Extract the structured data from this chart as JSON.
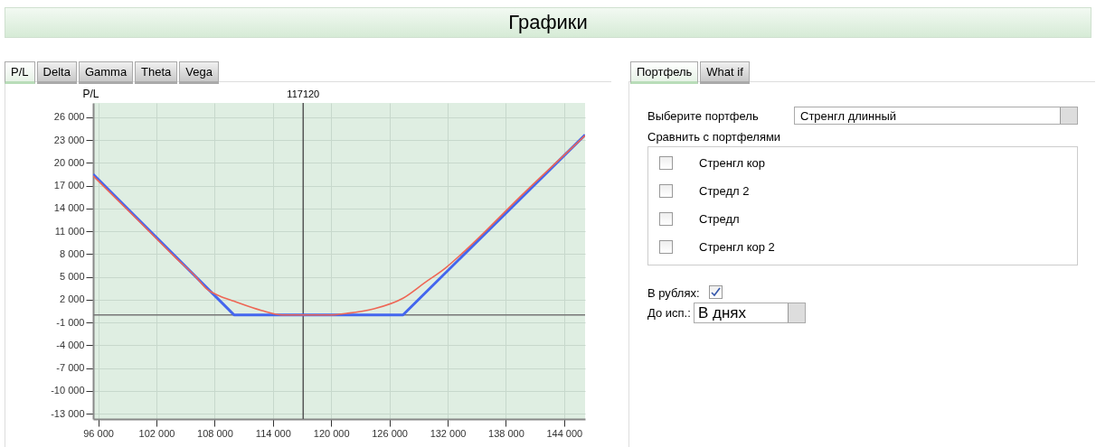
{
  "chart_data": [
    {
      "type": "line",
      "title": "Графики",
      "ylabel": "P/L",
      "annotations": [
        "P/L",
        "Delta",
        "Gamma",
        "Theta",
        "Vega"
      ],
      "xlim": [
        95480,
        146160
      ],
      "ylim": [
        -13700,
        27900
      ],
      "xticks": [
        {
          "value": 96000,
          "label": "96 000"
        },
        {
          "value": 102000,
          "label": "102 000"
        },
        {
          "value": 108000,
          "label": "108 000"
        },
        {
          "value": 114000,
          "label": "114 000"
        },
        {
          "value": 120000,
          "label": "120 000"
        },
        {
          "value": 126000,
          "label": "126 000"
        },
        {
          "value": 132000,
          "label": "132 000"
        },
        {
          "value": 138000,
          "label": "138 000"
        },
        {
          "value": 144000,
          "label": "144 000"
        }
      ],
      "yticks": [
        {
          "value": 26000,
          "label": "26 000"
        },
        {
          "value": 23000,
          "label": "23 000"
        },
        {
          "value": 20000,
          "label": "20 000"
        },
        {
          "value": 17000,
          "label": "17 000"
        },
        {
          "value": 14000,
          "label": "14 000"
        },
        {
          "value": 11000,
          "label": "11 000"
        },
        {
          "value": 8000,
          "label": "8 000"
        },
        {
          "value": 5000,
          "label": "5 000"
        },
        {
          "value": 2000,
          "label": "2 000"
        },
        {
          "value": -1000,
          "label": "-1 000"
        },
        {
          "value": -4000,
          "label": "-4 000"
        },
        {
          "value": -7000,
          "label": "-7 000"
        },
        {
          "value": -10000,
          "label": "-10 000"
        },
        {
          "value": -13000,
          "label": "-13 000"
        }
      ],
      "grid": true,
      "ref_lines": [
        {
          "axis": "y",
          "value": 0,
          "color": "#777777"
        },
        {
          "axis": "x",
          "value": 117120,
          "label": "117120",
          "color": "#555555"
        }
      ],
      "series": [
        {
          "color": "#4466ee",
          "x": [
            95480,
            110000,
            127400,
            146160
          ],
          "values": [
            18500,
            0,
            0,
            23700
          ]
        },
        {
          "color": "#ee6655",
          "x": [
            95480,
            100000,
            104000,
            106000,
            107200,
            108500,
            110000,
            112800,
            115000,
            117100,
            120000,
            121600,
            124400,
            127400,
            129600,
            131800,
            134000,
            140000,
            146160
          ],
          "values": [
            18300,
            12600,
            7500,
            5100,
            3400,
            2500,
            1800,
            600,
            0,
            0,
            0,
            200,
            800,
            2200,
            4200,
            6200,
            8700,
            16200,
            23600
          ]
        }
      ]
    },
    {
      "type": "other",
      "annotations": [
        "Портфель",
        "What if",
        "Выберите портфель",
        "Стренгл длинный",
        "Сравнить с портфелями",
        "Стренгл кор",
        "Стредл 2",
        "Стредл",
        "Стренгл кор 2",
        "В рублях:",
        "До исп.:",
        "В днях"
      ]
    }
  ]
}
